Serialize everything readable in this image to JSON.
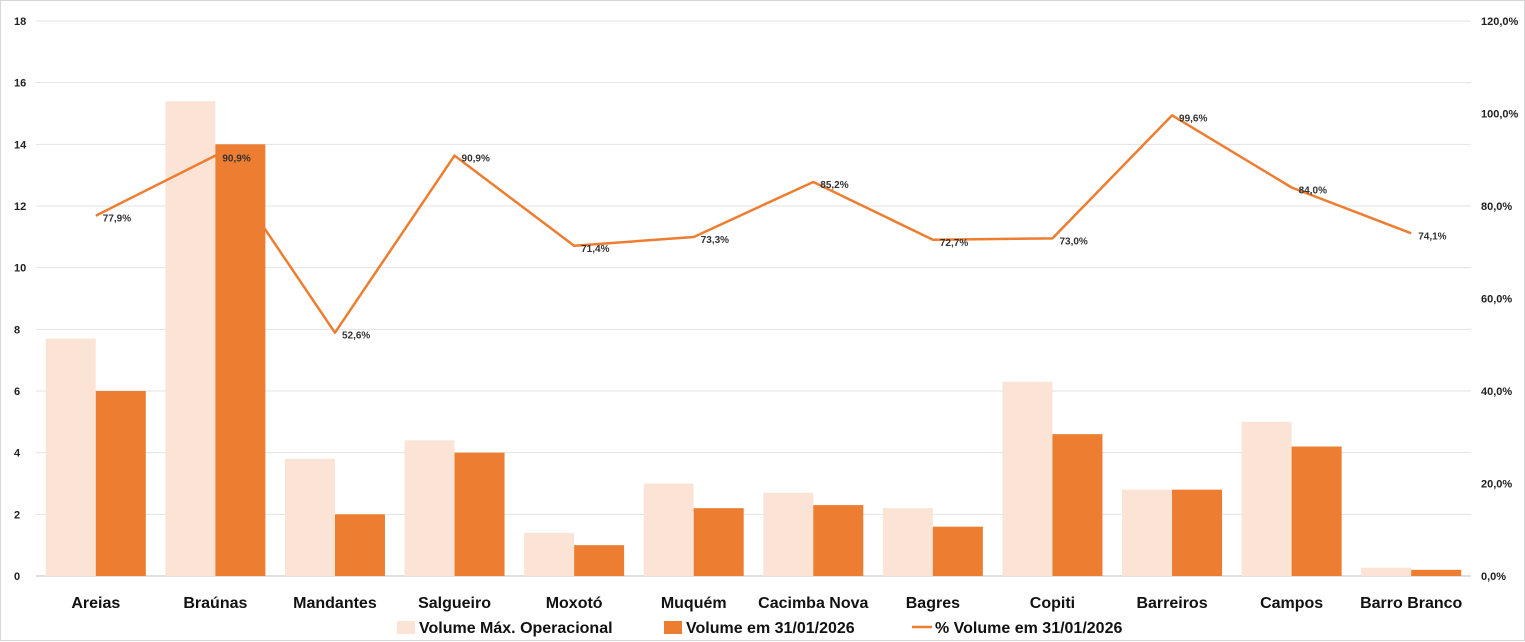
{
  "chart_data": {
    "type": "bar",
    "categories": [
      "Areias",
      "Braúnas",
      "Mandantes",
      "Salgueiro",
      "Moxotó",
      "Muquém",
      "Cacimba Nova",
      "Bagres",
      "Copiti",
      "Barreiros",
      "Campos",
      "Barro Branco"
    ],
    "series": [
      {
        "name": "Volume Máx. Operacional",
        "type": "bar",
        "axis": "left",
        "color": "#fbe4d5",
        "values": [
          7.7,
          15.4,
          3.8,
          4.4,
          1.4,
          3.0,
          2.7,
          2.2,
          6.3,
          2.8,
          5.0,
          0.27
        ]
      },
      {
        "name": "Volume em 31/01/2026",
        "type": "bar",
        "axis": "left",
        "color": "#ed7d31",
        "values": [
          6.0,
          14.0,
          2.0,
          4.0,
          1.0,
          2.2,
          2.3,
          1.6,
          4.6,
          2.8,
          4.2,
          0.2
        ]
      },
      {
        "name": "% Volume em 31/01/2026",
        "type": "line",
        "axis": "right",
        "color": "#ed7d31",
        "values": [
          77.9,
          90.9,
          52.6,
          90.9,
          71.4,
          73.3,
          85.2,
          72.7,
          73.0,
          99.6,
          84.0,
          74.1
        ],
        "labels": [
          "77,9%",
          "90,9%",
          "52,6%",
          "90,9%",
          "71,4%",
          "73,3%",
          "85,2%",
          "72,7%",
          "73,0%",
          "99,6%",
          "84,0%",
          "74,1%"
        ]
      }
    ],
    "ylim": [
      0,
      18
    ],
    "yticks": [
      "0",
      "2",
      "4",
      "6",
      "8",
      "10",
      "12",
      "14",
      "16",
      "18"
    ],
    "y2lim": [
      0,
      120
    ],
    "y2ticks": [
      "0,0%",
      "20,0%",
      "40,0%",
      "60,0%",
      "80,0%",
      "100,0%",
      "120,0%"
    ],
    "grid": true,
    "legend": "bottom"
  }
}
